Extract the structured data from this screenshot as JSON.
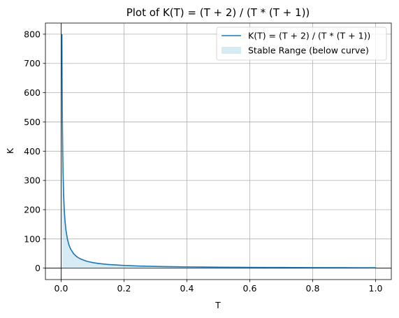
{
  "chart_data": {
    "type": "line",
    "title": "Plot of K(T) = (T + 2) / (T * (T + 1))",
    "xlabel": "T",
    "ylabel": "K",
    "xlim": [
      -0.05,
      1.05
    ],
    "ylim": [
      -39,
      838
    ],
    "xticks": [
      0.0,
      0.2,
      0.4,
      0.6,
      0.8,
      1.0
    ],
    "xtick_labels": [
      "0.0",
      "0.2",
      "0.4",
      "0.6",
      "0.8",
      "1.0"
    ],
    "yticks": [
      0,
      100,
      200,
      300,
      400,
      500,
      600,
      700,
      800
    ],
    "ytick_labels": [
      "0",
      "100",
      "200",
      "300",
      "400",
      "500",
      "600",
      "700",
      "800"
    ],
    "grid": true,
    "legend_position": "top-right",
    "series": [
      {
        "name": "K(T) = (T + 2) / (T * (T + 1))",
        "kind": "line",
        "color": "#1f77b4",
        "x": [
          0.0025,
          0.003,
          0.004,
          0.005,
          0.006,
          0.008,
          0.01,
          0.0125,
          0.015,
          0.02,
          0.025,
          0.03,
          0.04,
          0.05,
          0.06,
          0.08,
          0.1,
          0.12,
          0.15,
          0.2,
          0.25,
          0.3,
          0.35,
          0.4,
          0.45,
          0.5,
          0.6,
          0.7,
          0.8,
          0.9,
          1.0
        ],
        "y": [
          798.5,
          665.7,
          499.0,
          399.5,
          333.0,
          249.5,
          199.0,
          159.0,
          132.4,
          99.0,
          79.0,
          65.7,
          49.0,
          39.0,
          32.4,
          24.1,
          19.1,
          15.8,
          12.5,
          9.2,
          7.2,
          5.9,
          5.0,
          4.3,
          3.8,
          3.3,
          2.7,
          2.3,
          1.9,
          1.7,
          1.5
        ]
      },
      {
        "name": "Stable Range (below curve)",
        "kind": "fill_below",
        "color": "#add8e6",
        "opacity": 0.5
      }
    ]
  }
}
